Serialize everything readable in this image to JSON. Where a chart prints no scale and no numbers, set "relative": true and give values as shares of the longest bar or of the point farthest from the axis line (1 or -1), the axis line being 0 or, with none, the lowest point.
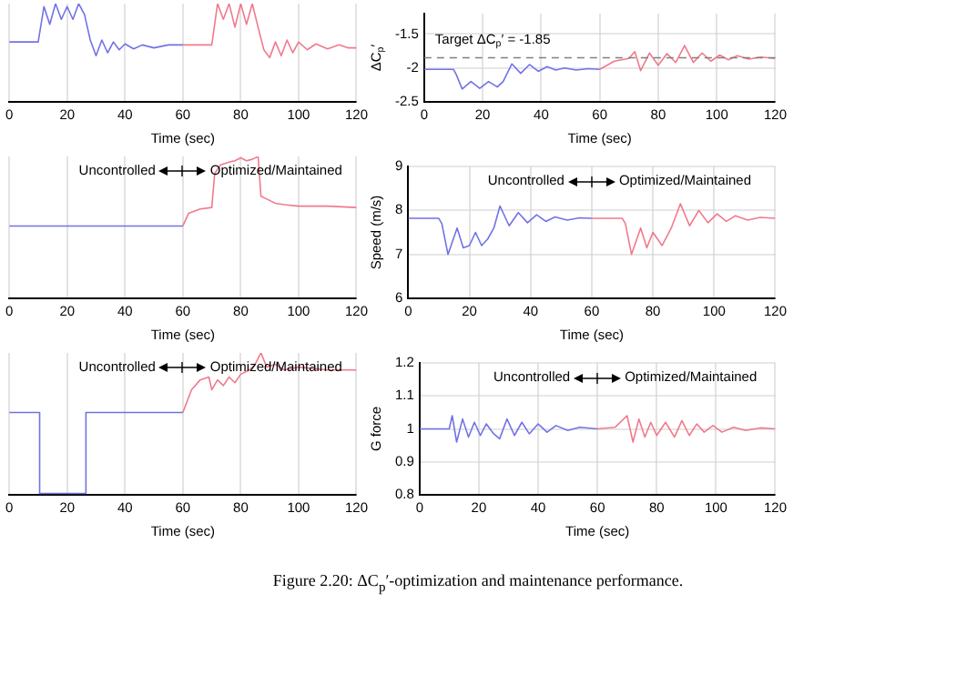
{
  "chart_data": [
    {
      "type": "line",
      "xlabel": "Time (sec)",
      "xlim": [
        0,
        120
      ],
      "xticks": [
        0,
        20,
        40,
        60,
        80,
        100,
        120
      ],
      "relative": true,
      "grid": "x",
      "tick_labels": "x",
      "series": [
        {
          "color": "#7272e6",
          "x": [
            0,
            10,
            12,
            14,
            16,
            18,
            20,
            22,
            24,
            26,
            28,
            30,
            32,
            34,
            36,
            38,
            40,
            43,
            46,
            50,
            55,
            60
          ],
          "values": [
            0.61,
            0.61,
            0.97,
            0.79,
            1,
            0.84,
            0.97,
            0.84,
            1,
            0.89,
            0.63,
            0.47,
            0.63,
            0.5,
            0.61,
            0.53,
            0.59,
            0.54,
            0.58,
            0.55,
            0.58,
            0.58
          ]
        },
        {
          "color": "#f07a8c",
          "x": [
            60,
            65,
            70,
            72,
            74,
            76,
            78,
            80,
            82,
            84,
            86,
            88,
            90,
            92,
            94,
            96,
            98,
            100,
            103,
            106,
            110,
            114,
            117,
            120
          ],
          "values": [
            0.58,
            0.58,
            0.58,
            1,
            0.84,
            1,
            0.76,
            1,
            0.79,
            1,
            0.76,
            0.53,
            0.45,
            0.61,
            0.47,
            0.63,
            0.5,
            0.61,
            0.53,
            0.59,
            0.54,
            0.58,
            0.55,
            0.55
          ]
        }
      ]
    },
    {
      "type": "line",
      "xlabel": "Time (sec)",
      "ylabel": "ΔC$_{p}$′",
      "xlim": [
        0,
        120
      ],
      "xticks": [
        0,
        20,
        40,
        60,
        80,
        100,
        120
      ],
      "ylim": [
        -2.5,
        -1.2
      ],
      "yticks": [
        -2.5,
        -2,
        -1.5
      ],
      "grid": true,
      "ref_lines": [
        {
          "axis": "y",
          "value": -1.85,
          "label": "Target ΔC$_{p}$′ = -1.85",
          "line_style": "dashed",
          "color": "#808080"
        }
      ],
      "series": [
        {
          "color": "#7272e6",
          "x": [
            0,
            10,
            11,
            13,
            16,
            19,
            22,
            25,
            27,
            30,
            33,
            36,
            39,
            42,
            45,
            48,
            52,
            56,
            60
          ],
          "values": [
            -2.02,
            -2.02,
            -2.1,
            -2.31,
            -2.2,
            -2.3,
            -2.2,
            -2.28,
            -2.2,
            -1.94,
            -2.08,
            -1.95,
            -2.05,
            -1.98,
            -2.03,
            -2,
            -2.03,
            -2.01,
            -2.02
          ]
        },
        {
          "color": "#f07a8c",
          "x": [
            60,
            65,
            70,
            72,
            74,
            77,
            80,
            83,
            86,
            89,
            92,
            95,
            98,
            101,
            104,
            107,
            111,
            115,
            120
          ],
          "values": [
            -2.02,
            -1.9,
            -1.86,
            -1.76,
            -2.04,
            -1.78,
            -1.96,
            -1.79,
            -1.92,
            -1.67,
            -1.92,
            -1.78,
            -1.9,
            -1.81,
            -1.88,
            -1.82,
            -1.87,
            -1.84,
            -1.86
          ]
        }
      ]
    },
    {
      "type": "line",
      "xlabel": "Time (sec)",
      "xlim": [
        0,
        120
      ],
      "xticks": [
        0,
        20,
        40,
        60,
        80,
        100,
        120
      ],
      "relative": true,
      "grid": "x",
      "tick_labels": "x",
      "annotations": [
        "Uncontrolled",
        "Optimized/Maintained"
      ],
      "series": [
        {
          "color": "#7272e6",
          "x": [
            0,
            60
          ],
          "values": [
            0.51,
            0.51
          ]
        },
        {
          "color": "#f07a8c",
          "x": [
            60,
            62,
            66,
            70,
            71,
            73,
            76,
            78,
            80,
            82,
            84,
            86,
            87,
            90,
            92,
            95,
            100,
            110,
            120
          ],
          "values": [
            0.51,
            0.6,
            0.63,
            0.64,
            0.88,
            0.94,
            0.96,
            0.97,
            0.99,
            0.97,
            0.98,
            1,
            0.72,
            0.69,
            0.67,
            0.66,
            0.65,
            0.65,
            0.64
          ]
        }
      ]
    },
    {
      "type": "line",
      "xlabel": "Time (sec)",
      "ylabel": "Speed (m/s)",
      "xlim": [
        0,
        120
      ],
      "xticks": [
        0,
        20,
        40,
        60,
        80,
        100,
        120
      ],
      "ylim": [
        6,
        9
      ],
      "yticks": [
        6,
        7,
        8,
        9
      ],
      "grid": true,
      "annotations": [
        "Uncontrolled",
        "Optimized/Maintained"
      ],
      "series": [
        {
          "color": "#7272e6",
          "x": [
            0,
            10,
            11,
            13,
            16,
            18,
            20,
            22,
            24,
            26,
            28,
            30,
            33,
            36,
            39,
            42,
            45,
            48,
            52,
            56,
            60
          ],
          "values": [
            7.82,
            7.82,
            7.7,
            7,
            7.6,
            7.15,
            7.2,
            7.5,
            7.2,
            7.35,
            7.6,
            8.1,
            7.65,
            7.95,
            7.72,
            7.9,
            7.75,
            7.85,
            7.78,
            7.83,
            7.82
          ]
        },
        {
          "color": "#f07a8c",
          "x": [
            60,
            70,
            71,
            73,
            76,
            78,
            80,
            83,
            86,
            89,
            92,
            95,
            98,
            101,
            104,
            107,
            111,
            115,
            120
          ],
          "values": [
            7.82,
            7.82,
            7.7,
            7,
            7.6,
            7.15,
            7.5,
            7.2,
            7.6,
            8.15,
            7.65,
            8,
            7.72,
            7.92,
            7.75,
            7.88,
            7.78,
            7.84,
            7.82
          ]
        }
      ]
    },
    {
      "type": "line",
      "xlabel": "Time (sec)",
      "xlim": [
        0,
        120
      ],
      "xticks": [
        0,
        20,
        40,
        60,
        80,
        100,
        120
      ],
      "relative": true,
      "grid": "x",
      "tick_labels": "x",
      "annotations": [
        "Uncontrolled",
        "Optimized/Maintained"
      ],
      "series": [
        {
          "color": "#7272e6",
          "x": [
            0,
            10.5,
            10.5,
            26.5,
            26.5,
            60
          ],
          "values": [
            0.58,
            0.58,
            0.01,
            0.01,
            0.58,
            0.58
          ]
        },
        {
          "color": "#f07a8c",
          "x": [
            60,
            63,
            66,
            69,
            70,
            72,
            74,
            76,
            78,
            80,
            83,
            85,
            87,
            89,
            92,
            95,
            100,
            110,
            120
          ],
          "values": [
            0.58,
            0.74,
            0.81,
            0.83,
            0.74,
            0.81,
            0.77,
            0.83,
            0.79,
            0.85,
            0.88,
            0.92,
            1,
            0.9,
            0.92,
            0.88,
            0.9,
            0.88,
            0.88
          ]
        }
      ]
    },
    {
      "type": "line",
      "xlabel": "Time (sec)",
      "ylabel": "G force",
      "xlim": [
        0,
        120
      ],
      "xticks": [
        0,
        20,
        40,
        60,
        80,
        100,
        120
      ],
      "ylim": [
        0.8,
        1.2
      ],
      "yticks": [
        0.8,
        0.9,
        1,
        1.1,
        1.2
      ],
      "grid": true,
      "annotations": [
        "Uncontrolled",
        "Optimized/Maintained",
        "Figure 2.20: ΔC$_{p}$′-optimization and maintenance performance."
      ],
      "series": [
        {
          "color": "#7272e6",
          "x": [
            0,
            10,
            11,
            12.5,
            14.5,
            16.5,
            18.5,
            20.5,
            22.5,
            25,
            27,
            29.5,
            32,
            34.5,
            37,
            40,
            43,
            46,
            50,
            54,
            60
          ],
          "values": [
            1,
            1,
            1.04,
            0.96,
            1.03,
            0.975,
            1.02,
            0.98,
            1.015,
            0.985,
            0.97,
            1.03,
            0.98,
            1.02,
            0.985,
            1.015,
            0.99,
            1.01,
            0.995,
            1.005,
            1
          ]
        },
        {
          "color": "#f07a8c",
          "x": [
            60,
            66,
            70,
            72,
            74,
            76,
            78,
            80,
            83,
            86,
            88.5,
            91,
            93.5,
            96,
            99,
            102,
            106,
            110,
            115,
            120
          ],
          "values": [
            1,
            1.005,
            1.04,
            0.96,
            1.03,
            0.975,
            1.02,
            0.98,
            1.02,
            0.975,
            1.025,
            0.98,
            1.015,
            0.99,
            1.01,
            0.99,
            1.005,
            0.995,
            1.003,
            1
          ]
        }
      ]
    }
  ]
}
